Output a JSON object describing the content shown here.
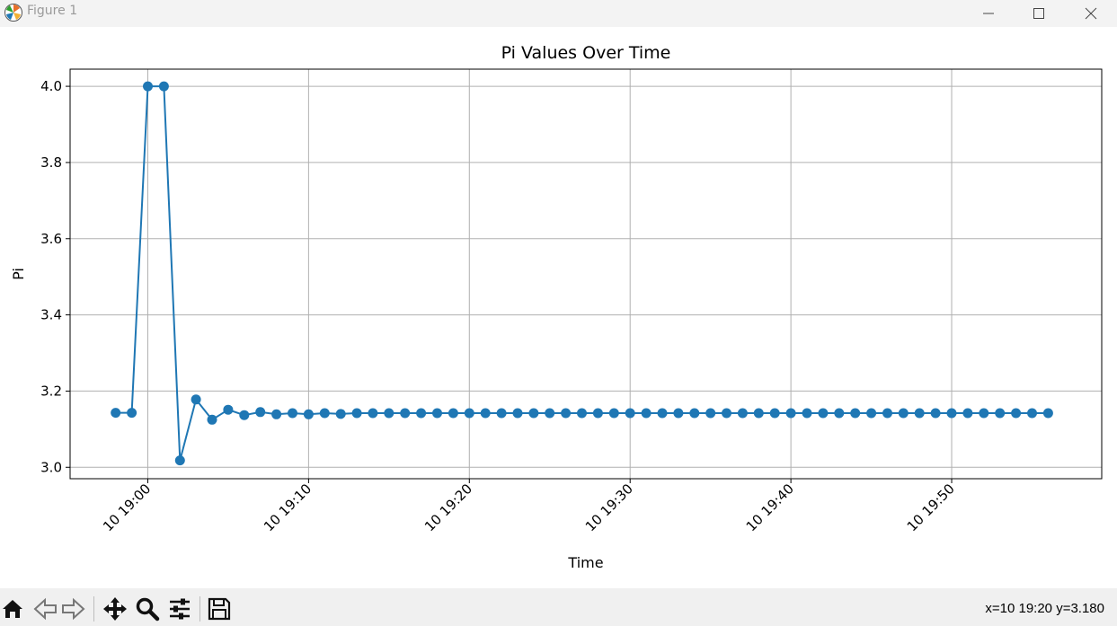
{
  "window": {
    "title": "Figure 1"
  },
  "toolbar": {
    "icons": [
      "home-icon",
      "back-icon",
      "forward-icon",
      "pan-icon",
      "zoom-icon",
      "configure-icon",
      "save-icon"
    ],
    "coords": "x=10 19:20 y=3.180"
  },
  "chart_data": {
    "type": "line",
    "title": "Pi Values Over Time",
    "xlabel": "Time",
    "ylabel": "Pi",
    "color": "#1f77b4",
    "grid": true,
    "x_ticks": [
      "10 19:00",
      "10 19:10",
      "10 19:20",
      "10 19:30",
      "10 19:40",
      "10 19:50"
    ],
    "xlim": [
      "10 18:55:10",
      "10 19:59:20"
    ],
    "y_ticks": [
      "3.0",
      "3.2",
      "3.4",
      "3.6",
      "3.8",
      "4.0"
    ],
    "ylim": [
      2.97,
      4.045
    ],
    "series": [
      {
        "x": [
          "10 18:58",
          "10 18:59",
          "10 19:00",
          "10 19:01",
          "10 19:02",
          "10 19:03",
          "10 19:04",
          "10 19:05",
          "10 19:06",
          "10 19:07",
          "10 19:08",
          "10 19:09",
          "10 19:10",
          "10 19:11",
          "10 19:12",
          "10 19:13",
          "10 19:14",
          "10 19:15",
          "10 19:16",
          "10 19:17",
          "10 19:18",
          "10 19:19",
          "10 19:20",
          "10 19:21",
          "10 19:22",
          "10 19:23",
          "10 19:24",
          "10 19:25",
          "10 19:26",
          "10 19:27",
          "10 19:28",
          "10 19:29",
          "10 19:30",
          "10 19:31",
          "10 19:32",
          "10 19:33",
          "10 19:34",
          "10 19:35",
          "10 19:36",
          "10 19:37",
          "10 19:38",
          "10 19:39",
          "10 19:40",
          "10 19:41",
          "10 19:42",
          "10 19:43",
          "10 19:44",
          "10 19:45",
          "10 19:46",
          "10 19:47",
          "10 19:48",
          "10 19:49",
          "10 19:50",
          "10 19:51",
          "10 19:52",
          "10 19:53",
          "10 19:54",
          "10 19:55",
          "10 19:56"
        ],
        "y": [
          3.143,
          3.143,
          4.0,
          4.0,
          3.018,
          3.178,
          3.125,
          3.151,
          3.137,
          3.145,
          3.139,
          3.142,
          3.139,
          3.142,
          3.14,
          3.142,
          3.142,
          3.142,
          3.142,
          3.142,
          3.142,
          3.142,
          3.142,
          3.142,
          3.142,
          3.142,
          3.142,
          3.142,
          3.142,
          3.142,
          3.142,
          3.142,
          3.142,
          3.142,
          3.142,
          3.142,
          3.142,
          3.142,
          3.142,
          3.142,
          3.142,
          3.142,
          3.142,
          3.142,
          3.142,
          3.142,
          3.142,
          3.142,
          3.142,
          3.142,
          3.142,
          3.142,
          3.142,
          3.142,
          3.142,
          3.142,
          3.142,
          3.142,
          3.142
        ]
      }
    ]
  }
}
